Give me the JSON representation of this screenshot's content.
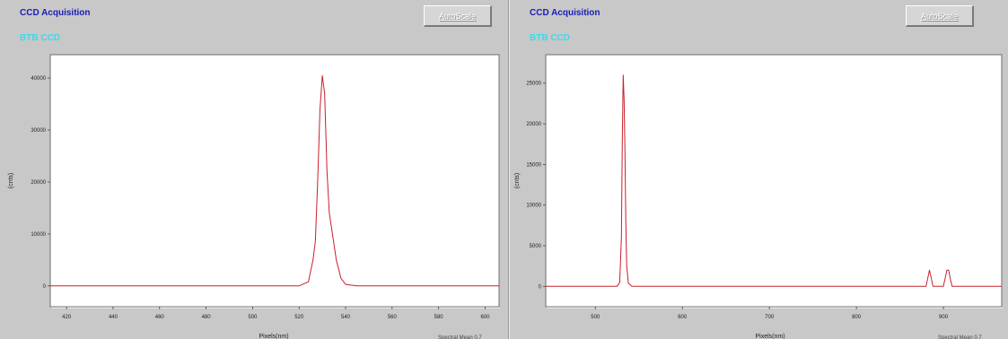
{
  "panels": [
    {
      "title": "CCD Acquisition",
      "ccd_label": "BTB CCD",
      "autoscale_label": "AutoScale",
      "bottom_text": "Spectral  Mean 0.7"
    },
    {
      "title": "CCD Acquisition",
      "ccd_label": "BTB CCD",
      "autoscale_label": "AutoScale",
      "bottom_text": "Spectral  Mean 0.7"
    }
  ],
  "colors": {
    "line": "#c8202a",
    "plot_bg": "#ffffff",
    "window_bg": "#c8c8c8",
    "title": "#1b1bb8",
    "ccd_label": "#3fd8ea"
  },
  "chart_data": [
    {
      "type": "line",
      "xlabel": "Pixels(nm)",
      "ylabel": "(cnts)",
      "xlim": [
        413,
        606
      ],
      "ylim": [
        -4000,
        44500
      ],
      "xticks": [
        420,
        440,
        460,
        480,
        500,
        520,
        540,
        560,
        580,
        600
      ],
      "yticks": [
        0,
        10000,
        20000,
        30000,
        40000
      ],
      "grid": false,
      "series": [
        {
          "x": [
            413,
            440,
            470,
            500,
            520,
            524,
            526,
            527,
            528,
            529,
            530,
            531,
            532,
            533,
            534,
            535,
            536,
            538,
            540,
            545,
            560,
            580,
            606
          ],
          "y": [
            0,
            0,
            0,
            0,
            0,
            800,
            5000,
            8500,
            20000,
            34000,
            40500,
            37000,
            22000,
            14000,
            11000,
            8000,
            5000,
            1500,
            300,
            0,
            0,
            0,
            0
          ]
        }
      ]
    },
    {
      "type": "line",
      "xlabel": "Pixels(nm)",
      "ylabel": "(cnts)",
      "xlim": [
        443,
        967
      ],
      "ylim": [
        -2500,
        28500
      ],
      "xticks": [
        500,
        600,
        700,
        800,
        900
      ],
      "yticks": [
        0,
        5000,
        10000,
        15000,
        20000,
        25000
      ],
      "grid": false,
      "series": [
        {
          "x": [
            443,
            500,
            525,
            528,
            530,
            531,
            532,
            533,
            534,
            535,
            536,
            538,
            542,
            560,
            700,
            880,
            882,
            884,
            886,
            888,
            900,
            902,
            904,
            906,
            908,
            910,
            967
          ],
          "y": [
            0,
            0,
            0,
            500,
            6000,
            18000,
            26000,
            23000,
            17000,
            8000,
            2500,
            400,
            0,
            0,
            0,
            0,
            1000,
            2000,
            1000,
            0,
            0,
            1000,
            2000,
            2000,
            900,
            0,
            0
          ]
        }
      ]
    }
  ]
}
